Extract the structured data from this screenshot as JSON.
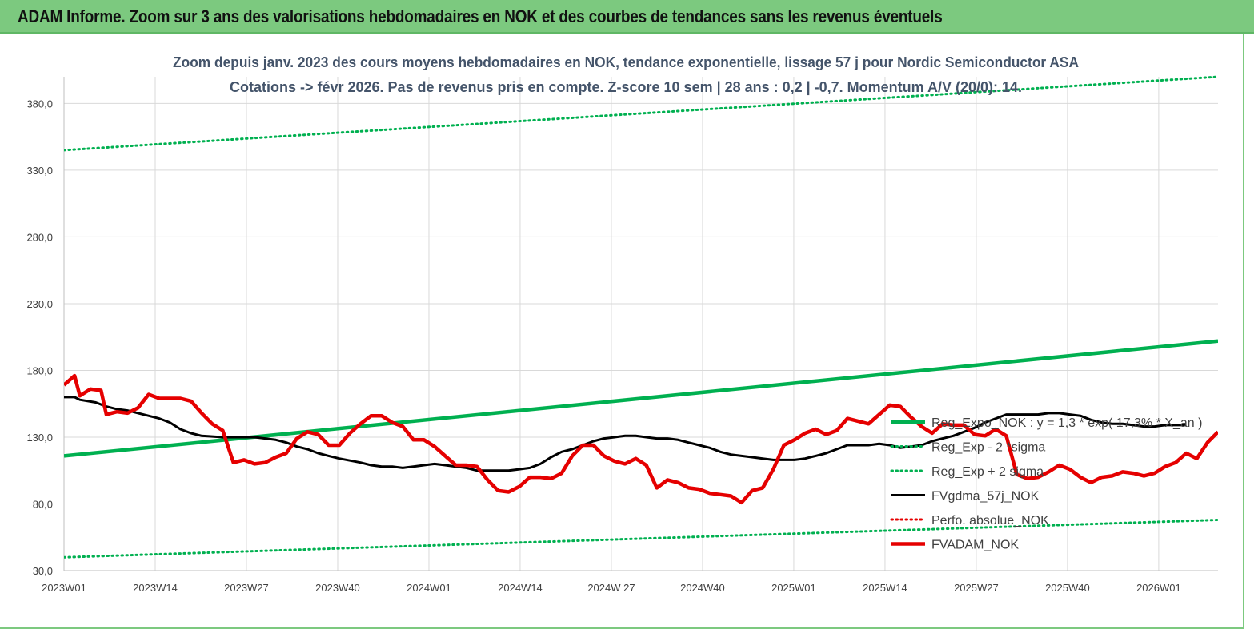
{
  "header": {
    "title": "ADAM Informe. Zoom sur 3 ans des valorisations hebdomadaires en NOK et des courbes de tendances sans les revenus éventuels"
  },
  "colors": {
    "banner": "#7cc97f",
    "trend": "#00b050",
    "price": "#e50000",
    "smooth": "#000000",
    "perfo": "#e50000"
  },
  "chart_data": {
    "type": "line",
    "title": "Zoom depuis janv. 2023 des cours moyens hebdomadaires en NOK, tendance exponentielle, lissage 57 j pour Nordic Semiconductor ASA",
    "subtitle": "Cotations -> févr 2026.  Pas de revenus pris en compte. Z-score 10 sem  | 28 ans : 0,2 | -0,7. Momentum A/V (20/0): 14.",
    "ylim": [
      30,
      400
    ],
    "yticks": [
      "30,0",
      "80,0",
      "130,0",
      "180,0",
      "230,0",
      "280,0",
      "330,0",
      "380,0"
    ],
    "ytick_values": [
      30,
      80,
      130,
      180,
      230,
      280,
      330,
      380
    ],
    "xticks": [
      "2023W01",
      "2023W14",
      "2023W27",
      "2023W40",
      "2024W01",
      "2024W14",
      "2024W 27",
      "2024W40",
      "2025W01",
      "2025W14",
      "2025W27",
      "2025W40",
      "2026W01"
    ],
    "xtick_index": [
      0,
      13,
      26,
      39,
      52,
      65,
      78,
      91,
      104,
      117,
      130,
      143,
      156
    ],
    "n_weeks": 166,
    "grid": true,
    "legend_position": "right",
    "series": [
      {
        "name": "Reg_Expo_NOK : y = 1,3 * exp( 17,3% * X_an )",
        "style": "solid-thick",
        "color": "#00b050",
        "points": [
          [
            0,
            116
          ],
          [
            165,
            202
          ]
        ]
      },
      {
        "name": "Reg_Exp - 2 *sigma",
        "style": "dotted",
        "color": "#00b050",
        "points": [
          [
            0,
            40
          ],
          [
            165,
            68
          ]
        ]
      },
      {
        "name": "Reg_Exp + 2 sigma",
        "style": "dotted",
        "color": "#00b050",
        "points": [
          [
            0,
            345
          ],
          [
            165,
            400
          ]
        ]
      },
      {
        "name": "FVgdma_57j_NOK",
        "style": "solid",
        "color": "#000000",
        "points": [
          [
            0,
            160
          ],
          [
            2,
            160
          ],
          [
            3,
            158
          ],
          [
            6,
            156
          ],
          [
            8,
            153
          ],
          [
            10,
            151
          ],
          [
            12,
            150
          ],
          [
            14,
            148
          ],
          [
            18,
            144
          ],
          [
            20,
            141
          ],
          [
            22,
            136
          ],
          [
            24,
            133
          ],
          [
            26,
            131
          ],
          [
            30,
            130
          ],
          [
            34,
            130
          ],
          [
            36,
            130
          ],
          [
            38,
            129
          ],
          [
            40,
            128
          ],
          [
            42,
            126
          ],
          [
            44,
            123
          ],
          [
            46,
            121
          ],
          [
            48,
            118
          ],
          [
            50,
            116
          ],
          [
            52,
            114
          ],
          [
            56,
            111
          ],
          [
            58,
            109
          ],
          [
            60,
            108
          ],
          [
            62,
            108
          ],
          [
            64,
            107
          ],
          [
            66,
            108
          ],
          [
            68,
            109
          ],
          [
            70,
            110
          ],
          [
            72,
            109
          ],
          [
            74,
            108
          ],
          [
            76,
            107
          ],
          [
            78,
            105
          ],
          [
            80,
            105
          ],
          [
            84,
            105
          ],
          [
            86,
            106
          ],
          [
            88,
            107
          ],
          [
            90,
            110
          ],
          [
            92,
            115
          ],
          [
            94,
            119
          ],
          [
            96,
            121
          ],
          [
            98,
            124
          ],
          [
            100,
            127
          ],
          [
            102,
            129
          ],
          [
            104,
            130
          ],
          [
            106,
            131
          ],
          [
            108,
            131
          ],
          [
            110,
            130
          ],
          [
            112,
            129
          ],
          [
            114,
            129
          ],
          [
            116,
            128
          ],
          [
            118,
            126
          ],
          [
            120,
            124
          ],
          [
            122,
            122
          ],
          [
            124,
            119
          ],
          [
            126,
            117
          ],
          [
            128,
            116
          ],
          [
            130,
            115
          ],
          [
            132,
            114
          ],
          [
            134,
            113
          ],
          [
            136,
            113
          ],
          [
            138,
            113
          ],
          [
            140,
            114
          ],
          [
            142,
            116
          ],
          [
            144,
            118
          ],
          [
            146,
            121
          ],
          [
            148,
            124
          ],
          [
            150,
            124
          ],
          [
            152,
            124
          ],
          [
            154,
            125
          ],
          [
            156,
            124
          ],
          [
            158,
            122
          ],
          [
            160,
            123
          ],
          [
            162,
            124
          ],
          [
            164,
            127
          ],
          [
            166,
            129
          ],
          [
            168,
            131
          ],
          [
            170,
            134
          ],
          [
            172,
            137
          ],
          [
            174,
            141
          ],
          [
            176,
            144
          ],
          [
            178,
            147
          ],
          [
            180,
            147
          ],
          [
            184,
            147
          ],
          [
            186,
            148
          ],
          [
            188,
            148
          ],
          [
            190,
            147
          ],
          [
            192,
            146
          ],
          [
            194,
            143
          ],
          [
            196,
            141
          ],
          [
            198,
            140
          ],
          [
            200,
            140
          ],
          [
            202,
            139
          ],
          [
            204,
            138
          ],
          [
            206,
            138
          ],
          [
            208,
            139
          ],
          [
            210,
            139
          ],
          [
            212,
            139
          ]
        ]
      },
      {
        "name": "Perfo. absolue_NOK",
        "style": "dotted",
        "color": "#e50000",
        "points": []
      },
      {
        "name": "FVADAM_NOK",
        "style": "solid-thick",
        "color": "#e50000",
        "points": [
          [
            0,
            169
          ],
          [
            2,
            176
          ],
          [
            3,
            161
          ],
          [
            5,
            166
          ],
          [
            7,
            165
          ],
          [
            8,
            147
          ],
          [
            10,
            149
          ],
          [
            12,
            148
          ],
          [
            14,
            152
          ],
          [
            16,
            162
          ],
          [
            18,
            159
          ],
          [
            22,
            159
          ],
          [
            24,
            157
          ],
          [
            26,
            148
          ],
          [
            28,
            140
          ],
          [
            30,
            135
          ],
          [
            32,
            111
          ],
          [
            34,
            113
          ],
          [
            36,
            110
          ],
          [
            38,
            111
          ],
          [
            40,
            115
          ],
          [
            42,
            118
          ],
          [
            44,
            129
          ],
          [
            46,
            134
          ],
          [
            48,
            132
          ],
          [
            50,
            124
          ],
          [
            52,
            124
          ],
          [
            54,
            133
          ],
          [
            56,
            140
          ],
          [
            58,
            146
          ],
          [
            60,
            146
          ],
          [
            62,
            141
          ],
          [
            64,
            138
          ],
          [
            66,
            128
          ],
          [
            68,
            128
          ],
          [
            70,
            123
          ],
          [
            72,
            116
          ],
          [
            74,
            109
          ],
          [
            76,
            109
          ],
          [
            78,
            108
          ],
          [
            80,
            98
          ],
          [
            82,
            90
          ],
          [
            84,
            89
          ],
          [
            86,
            93
          ],
          [
            88,
            100
          ],
          [
            90,
            100
          ],
          [
            92,
            99
          ],
          [
            94,
            103
          ],
          [
            96,
            116
          ],
          [
            98,
            124
          ],
          [
            100,
            124
          ],
          [
            102,
            116
          ],
          [
            104,
            112
          ],
          [
            106,
            110
          ],
          [
            108,
            114
          ],
          [
            110,
            109
          ],
          [
            112,
            92
          ],
          [
            114,
            98
          ],
          [
            116,
            96
          ],
          [
            118,
            92
          ],
          [
            120,
            91
          ],
          [
            122,
            88
          ],
          [
            124,
            87
          ],
          [
            126,
            86
          ],
          [
            128,
            81
          ],
          [
            130,
            90
          ],
          [
            132,
            92
          ],
          [
            134,
            106
          ],
          [
            136,
            124
          ],
          [
            138,
            128
          ],
          [
            140,
            133
          ],
          [
            142,
            136
          ],
          [
            144,
            132
          ],
          [
            146,
            135
          ],
          [
            148,
            144
          ],
          [
            150,
            142
          ],
          [
            152,
            140
          ],
          [
            154,
            147
          ],
          [
            156,
            154
          ],
          [
            158,
            153
          ],
          [
            160,
            145
          ],
          [
            162,
            138
          ],
          [
            164,
            133
          ],
          [
            166,
            140
          ],
          [
            168,
            139
          ],
          [
            170,
            139
          ],
          [
            172,
            132
          ],
          [
            174,
            131
          ],
          [
            176,
            136
          ],
          [
            178,
            131
          ],
          [
            180,
            102
          ],
          [
            182,
            99
          ],
          [
            184,
            100
          ],
          [
            186,
            104
          ],
          [
            188,
            109
          ],
          [
            190,
            106
          ],
          [
            192,
            100
          ],
          [
            194,
            96
          ],
          [
            196,
            100
          ],
          [
            198,
            101
          ],
          [
            200,
            104
          ],
          [
            202,
            103
          ],
          [
            204,
            101
          ],
          [
            206,
            103
          ],
          [
            208,
            108
          ],
          [
            210,
            111
          ],
          [
            212,
            118
          ],
          [
            214,
            114
          ],
          [
            216,
            126
          ],
          [
            218,
            134
          ]
        ]
      }
    ]
  }
}
